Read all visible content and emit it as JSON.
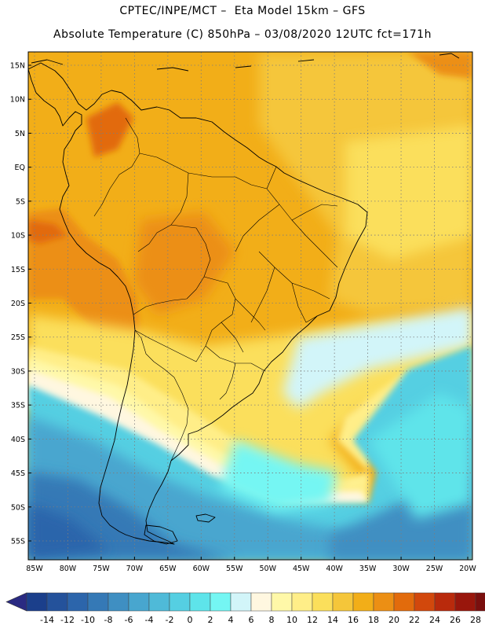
{
  "title": {
    "line1": "CPTEC/INPE/MCT –  Eta Model 15km – GFS",
    "line2": "Absolute Temperature (C) 850hPa – 03/08/2020 12UTC fct=171h"
  },
  "map": {
    "region": "South America",
    "lat_labels": [
      "15N",
      "10N",
      "5N",
      "EQ",
      "5S",
      "10S",
      "15S",
      "20S",
      "25S",
      "30S",
      "35S",
      "40S",
      "45S",
      "50S",
      "55S"
    ],
    "lon_labels": [
      "85W",
      "80W",
      "75W",
      "70W",
      "65W",
      "60W",
      "55W",
      "50W",
      "45W",
      "40W",
      "35W",
      "30W",
      "25W",
      "20W"
    ]
  },
  "colorbar": {
    "labels": [
      "-14",
      "-12",
      "-10",
      "-8",
      "-6",
      "-4",
      "-2",
      "0",
      "2",
      "4",
      "6",
      "8",
      "10",
      "12",
      "14",
      "16",
      "18",
      "20",
      "22",
      "24",
      "26",
      "28"
    ],
    "colors": [
      "#1b3f8b",
      "#24529b",
      "#2c65ab",
      "#3579b6",
      "#3f8fc2",
      "#48a6cf",
      "#4fbad8",
      "#55cfe2",
      "#5ee4ea",
      "#74f6f3",
      "#d2f5f9",
      "#fff7e0",
      "#fff8a8",
      "#ffee88",
      "#fbdf5b",
      "#f5c63a",
      "#f2ae18",
      "#ec8f14",
      "#e26b0c",
      "#d2480c",
      "#b92a0c",
      "#99160c",
      "#7a0f0e"
    ],
    "under_color": "#2a2a82",
    "over_color": "#6a0010"
  }
}
